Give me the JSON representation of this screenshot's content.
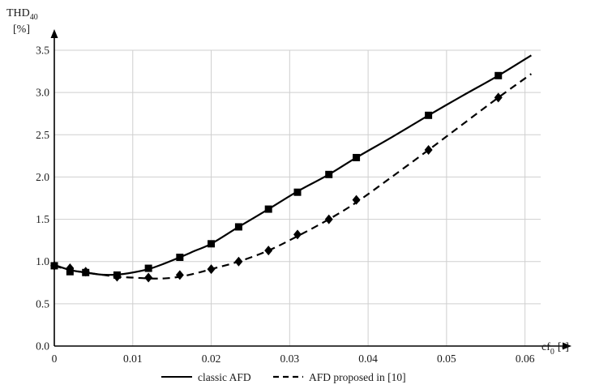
{
  "chart_data": {
    "type": "line",
    "ylabel_main": "THD",
    "ylabel_sub": "40",
    "ylabel_unit": "[%]",
    "xlabel_main": "cf",
    "xlabel_sub": "0",
    "xlabel_unit": "[-]",
    "xlim": [
      0,
      0.062
    ],
    "ylim": [
      0,
      3.5
    ],
    "xticks": [
      0,
      0.01,
      0.02,
      0.03,
      0.04,
      0.05,
      0.06
    ],
    "xtick_labels": [
      "0",
      "0.01",
      "0.02",
      "0.03",
      "0.04",
      "0.05",
      "0.06"
    ],
    "yticks": [
      0,
      0.5,
      1.0,
      1.5,
      2.0,
      2.5,
      3.0,
      3.5
    ],
    "ytick_labels": [
      "0.0",
      "0.5",
      "1.0",
      "1.5",
      "2.0",
      "2.5",
      "3.0",
      "3.5"
    ],
    "grid": true,
    "legend_position": "bottom",
    "series": [
      {
        "name": "classic AFD",
        "line_style": "solid",
        "marker": "square",
        "color": "#000000",
        "curve_x": [
          0,
          0.002,
          0.004,
          0.006,
          0.008,
          0.01,
          0.012,
          0.014,
          0.016,
          0.018,
          0.02,
          0.0235,
          0.0273,
          0.031,
          0.035,
          0.0385,
          0.043,
          0.0477,
          0.052,
          0.0566,
          0.0608
        ],
        "curve_y": [
          0.96,
          0.9,
          0.87,
          0.845,
          0.845,
          0.87,
          0.91,
          0.975,
          1.05,
          1.13,
          1.21,
          1.41,
          1.62,
          1.83,
          2.03,
          2.23,
          2.47,
          2.73,
          2.96,
          3.2,
          3.44
        ],
        "points_x": [
          0,
          0.002,
          0.004,
          0.008,
          0.012,
          0.016,
          0.02,
          0.0235,
          0.0273,
          0.031,
          0.035,
          0.0385,
          0.0477,
          0.0566
        ],
        "points_y": [
          0.95,
          0.88,
          0.87,
          0.84,
          0.92,
          1.05,
          1.21,
          1.41,
          1.62,
          1.82,
          2.03,
          2.23,
          2.73,
          3.2
        ]
      },
      {
        "name": "AFD proposed in [10]",
        "line_style": "dashed",
        "marker": "diamond",
        "color": "#000000",
        "curve_x": [
          0,
          0.002,
          0.004,
          0.006,
          0.008,
          0.01,
          0.012,
          0.014,
          0.016,
          0.018,
          0.02,
          0.0235,
          0.0273,
          0.031,
          0.035,
          0.0385,
          0.043,
          0.0477,
          0.052,
          0.0566,
          0.0608
        ],
        "curve_y": [
          0.95,
          0.9,
          0.87,
          0.845,
          0.82,
          0.81,
          0.8,
          0.8,
          0.82,
          0.86,
          0.91,
          1.0,
          1.13,
          1.3,
          1.5,
          1.7,
          2.0,
          2.32,
          2.62,
          2.94,
          3.22
        ],
        "points_x": [
          0,
          0.002,
          0.004,
          0.008,
          0.012,
          0.016,
          0.02,
          0.0235,
          0.0273,
          0.031,
          0.035,
          0.0385,
          0.0477,
          0.0566
        ],
        "points_y": [
          0.95,
          0.92,
          0.88,
          0.82,
          0.81,
          0.84,
          0.91,
          1.0,
          1.13,
          1.32,
          1.5,
          1.73,
          2.32,
          2.94
        ]
      }
    ]
  }
}
